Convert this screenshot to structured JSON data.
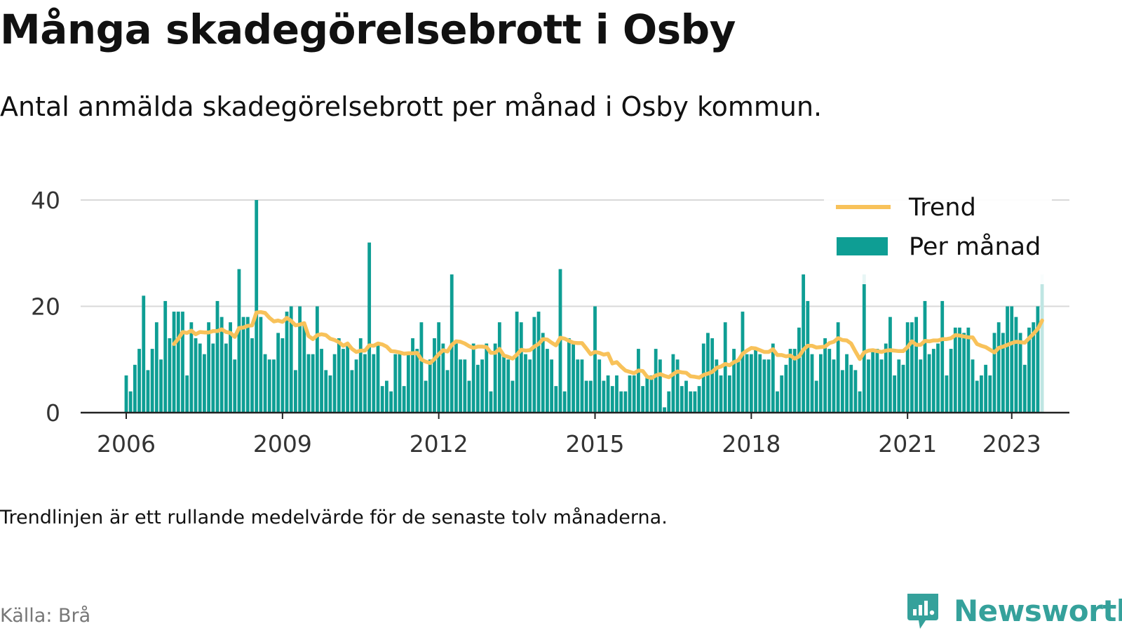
{
  "title": "Många skadegörelsebrott i Osby",
  "subtitle": "Antal anmälda skadegörelsebrott per månad i Osby kommun.",
  "note": "Trendlinjen är ett rullande medelvärde för de senaste tolv månaderna.",
  "source": "Källa: Brå",
  "brand": {
    "name": "Newsworthy",
    "icon": "newsworthy-logo-icon",
    "color": "#35a19b"
  },
  "colors": {
    "bar": "#0e9e94",
    "bar_last": "#bfe6e3",
    "trend": "#f8c25a",
    "grid": "#d9d9d9",
    "axis": "#222222"
  },
  "chart_data": {
    "type": "bar",
    "start": "2006-01",
    "x_tick_labels": [
      "2006",
      "2009",
      "2012",
      "2015",
      "2018",
      "2021",
      "2023"
    ],
    "x_tick_years": [
      2006,
      2009,
      2012,
      2015,
      2018,
      2021,
      2023
    ],
    "y_ticks": [
      0,
      20,
      40
    ],
    "ylim": [
      0,
      40
    ],
    "grid": true,
    "legend_position": "top-right",
    "legend": [
      {
        "label": "Trend",
        "kind": "line"
      },
      {
        "label": "Per månad",
        "kind": "bar"
      }
    ],
    "values": [
      7,
      4,
      9,
      12,
      22,
      8,
      12,
      17,
      10,
      21,
      14,
      19,
      19,
      19,
      7,
      17,
      14,
      13,
      11,
      17,
      13,
      21,
      18,
      13,
      17,
      10,
      27,
      18,
      18,
      14,
      40,
      18,
      11,
      10,
      10,
      15,
      14,
      19,
      20,
      8,
      20,
      17,
      11,
      11,
      20,
      12,
      8,
      7,
      11,
      14,
      12,
      13,
      8,
      10,
      14,
      11,
      32,
      11,
      13,
      5,
      6,
      4,
      11,
      11,
      5,
      11,
      14,
      12,
      17,
      6,
      10,
      14,
      17,
      13,
      8,
      26,
      13,
      10,
      10,
      6,
      13,
      9,
      10,
      13,
      4,
      13,
      17,
      11,
      10,
      6,
      19,
      17,
      11,
      10,
      18,
      19,
      15,
      12,
      10,
      5,
      27,
      4,
      14,
      13,
      10,
      10,
      6,
      6,
      20,
      10,
      6,
      7,
      5,
      7,
      4,
      4,
      7,
      7,
      12,
      5,
      7,
      7,
      12,
      10,
      1,
      4,
      11,
      10,
      5,
      6,
      4,
      4,
      5,
      13,
      15,
      14,
      10,
      7,
      17,
      7,
      12,
      10,
      19,
      11,
      11,
      12,
      11,
      10,
      10,
      13,
      4,
      7,
      9,
      12,
      12,
      16,
      26,
      21,
      11,
      6,
      11,
      14,
      12,
      10,
      17,
      8,
      11,
      9,
      8,
      4,
      26,
      10,
      12,
      12,
      10,
      13,
      18,
      7,
      10,
      9,
      17,
      17,
      18,
      10,
      21,
      11,
      12,
      13,
      21,
      7,
      12,
      16,
      16,
      15,
      16,
      10,
      6,
      7,
      9,
      7,
      15,
      17,
      15,
      20,
      20,
      18,
      15,
      9,
      16,
      17,
      20,
      26
    ]
  }
}
